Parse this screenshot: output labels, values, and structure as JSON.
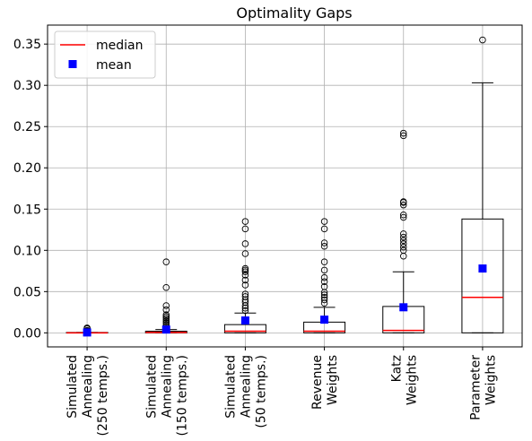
{
  "chart_data": {
    "type": "boxplot",
    "title": "Optimality Gaps",
    "xlabel": "",
    "ylabel": "",
    "ylim": [
      -0.017,
      0.373
    ],
    "yticks": [
      "0.00",
      "0.05",
      "0.10",
      "0.15",
      "0.20",
      "0.25",
      "0.30",
      "0.35"
    ],
    "grid": true,
    "legend": {
      "placement": "top-left",
      "entries": [
        {
          "label": "median",
          "marker": "line",
          "color": "#ff0000"
        },
        {
          "label": "mean",
          "marker": "square",
          "color": "#0000ff"
        }
      ]
    },
    "categories": [
      {
        "label_lines": [
          "Simulated",
          "Annealing",
          "(250 temps.)"
        ],
        "q1": 0.0,
        "median": 0.0,
        "q3": 0.0005,
        "whisker_low": 0.0,
        "whisker_high": 0.0005,
        "mean": 0.0005,
        "outliers": [
          0.001,
          0.002,
          0.003,
          0.005,
          0.006
        ]
      },
      {
        "label_lines": [
          "Simulated",
          "Annealing",
          "(150 temps.)"
        ],
        "q1": 0.0,
        "median": 0.0005,
        "q3": 0.002,
        "whisker_low": 0.0,
        "whisker_high": 0.004,
        "mean": 0.004,
        "outliers": [
          0.006,
          0.008,
          0.01,
          0.012,
          0.014,
          0.016,
          0.018,
          0.02,
          0.022,
          0.028,
          0.033,
          0.055,
          0.086
        ]
      },
      {
        "label_lines": [
          "Simulated",
          "Annealing",
          "(50 temps.)"
        ],
        "q1": 0.0,
        "median": 0.002,
        "q3": 0.01,
        "whisker_low": 0.0,
        "whisker_high": 0.024,
        "mean": 0.015,
        "outliers": [
          0.027,
          0.03,
          0.033,
          0.037,
          0.04,
          0.044,
          0.047,
          0.058,
          0.064,
          0.07,
          0.074,
          0.076,
          0.078,
          0.096,
          0.108,
          0.126,
          0.135
        ]
      },
      {
        "label_lines": [
          "Revenue",
          "Weights"
        ],
        "q1": 0.0,
        "median": 0.002,
        "q3": 0.013,
        "whisker_low": 0.0,
        "whisker_high": 0.031,
        "mean": 0.016,
        "outliers": [
          0.036,
          0.04,
          0.043,
          0.046,
          0.049,
          0.056,
          0.062,
          0.067,
          0.076,
          0.086,
          0.105,
          0.109,
          0.126,
          0.135
        ]
      },
      {
        "label_lines": [
          "Katz",
          "Weights"
        ],
        "q1": 0.0,
        "median": 0.003,
        "q3": 0.032,
        "whisker_low": 0.0,
        "whisker_high": 0.074,
        "mean": 0.031,
        "outliers": [
          0.093,
          0.1,
          0.104,
          0.108,
          0.112,
          0.116,
          0.12,
          0.14,
          0.143,
          0.155,
          0.158,
          0.159,
          0.239,
          0.242
        ]
      },
      {
        "label_lines": [
          "Parameter",
          "Weights"
        ],
        "q1": 0.0,
        "median": 0.043,
        "q3": 0.138,
        "whisker_low": 0.0,
        "whisker_high": 0.303,
        "mean": 0.078,
        "outliers": [
          0.355
        ]
      }
    ]
  }
}
